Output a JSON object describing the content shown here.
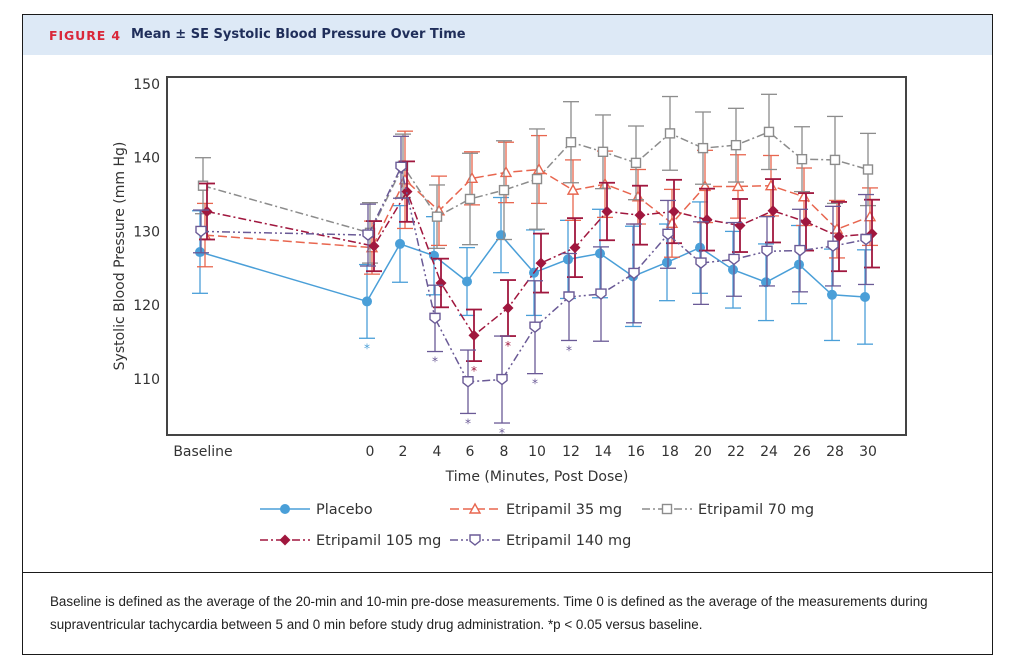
{
  "figure": {
    "label": "FIGURE 4",
    "title": "Mean ± SE Systolic Blood Pressure Over Time",
    "caption": "Baseline is defined as the average of the 20-min and 10-min pre-dose measurements. Time 0 is defined as the average of the measurements during supraventricular tachycardia between 5 and 0 min before study drug administration. *p < 0.05 versus baseline."
  },
  "chart_data": {
    "type": "line",
    "title": "Mean ± SE Systolic Blood Pressure Over Time",
    "xlabel": "Time (Minutes, Post Dose)",
    "ylabel": "Systolic Blood Pressure (mm Hg)",
    "ylim": [
      105.2,
      151
    ],
    "yticks": [
      110,
      120,
      130,
      140,
      150
    ],
    "x": [
      "Baseline",
      "0",
      "2",
      "4",
      "6",
      "8",
      "10",
      "12",
      "14",
      "16",
      "18",
      "20",
      "22",
      "24",
      "26",
      "28",
      "30"
    ],
    "grid": false,
    "legend_position": "bottom",
    "significance_marker": "*",
    "series": [
      {
        "name": "Placebo",
        "color": "#4a9fd8",
        "marker": "circle",
        "dash": "solid",
        "values": [
          127.2,
          120.5,
          128.3,
          126.7,
          123.2,
          129.5,
          124.4,
          126.2,
          127.0,
          123.9,
          125.8,
          127.8,
          124.8,
          123.1,
          125.5,
          121.4,
          121.1
        ],
        "se": [
          5.6,
          5.0,
          5.2,
          5.3,
          4.6,
          5.1,
          5.8,
          5.3,
          6.0,
          6.8,
          5.2,
          6.2,
          5.2,
          5.2,
          5.3,
          6.2,
          6.4
        ],
        "significant": [
          "",
          "*",
          "",
          "",
          "",
          "",
          "",
          "",
          "",
          "",
          "",
          "",
          "",
          "",
          "",
          "",
          ""
        ]
      },
      {
        "name": "Etripamil 35 mg",
        "color": "#e8664f",
        "marker": "triangle",
        "dash": "long-dash",
        "values": [
          129.5,
          127.8,
          137.0,
          132.8,
          137.2,
          138.0,
          138.4,
          135.6,
          136.4,
          134.7,
          131.1,
          136.1,
          136.1,
          136.2,
          134.7,
          130.3,
          132.0
        ],
        "se": [
          4.3,
          3.6,
          6.6,
          4.7,
          3.6,
          4.1,
          4.6,
          4.1,
          4.5,
          3.7,
          4.6,
          4.9,
          4.3,
          4.1,
          3.9,
          3.9,
          3.9
        ],
        "significant": [
          "",
          "",
          "",
          "",
          "",
          "",
          "",
          "",
          "",
          "",
          "",
          "",
          "",
          "",
          "",
          "",
          ""
        ]
      },
      {
        "name": "Etripamil 70 mg",
        "color": "#8c8c8c",
        "marker": "square",
        "dash": "dash-dot",
        "values": [
          136.2,
          129.8,
          138.9,
          132.0,
          134.4,
          135.6,
          137.1,
          142.1,
          140.8,
          139.3,
          143.3,
          141.3,
          141.7,
          143.5,
          139.8,
          139.7,
          138.4
        ],
        "se": [
          3.8,
          4.1,
          4.3,
          4.3,
          6.2,
          6.7,
          6.8,
          5.5,
          5.0,
          5.0,
          5.0,
          4.9,
          5.0,
          5.1,
          4.4,
          5.9,
          4.9
        ],
        "significant": [
          "",
          "",
          "",
          "",
          "",
          "",
          "",
          "",
          "",
          "",
          "",
          "",
          "",
          "",
          "",
          "",
          ""
        ]
      },
      {
        "name": "Etripamil 105 mg",
        "color": "#a0173e",
        "marker": "diamond",
        "dash": "dash-dot",
        "values": [
          132.7,
          128.0,
          135.4,
          123.0,
          115.9,
          119.6,
          125.7,
          127.8,
          132.7,
          132.2,
          132.7,
          131.6,
          130.8,
          132.8,
          131.3,
          129.3,
          129.7
        ],
        "se": [
          3.8,
          3.4,
          4.1,
          3.3,
          3.5,
          3.8,
          4.0,
          4.0,
          3.9,
          4.0,
          4.3,
          4.2,
          3.6,
          4.3,
          3.9,
          4.7,
          4.6
        ],
        "significant": [
          "",
          "",
          "",
          "",
          "*",
          "*",
          "",
          "",
          "",
          "",
          "",
          "",
          "",
          "",
          "",
          "",
          ""
        ]
      },
      {
        "name": "Etripamil 140 mg",
        "color": "#6a5a96",
        "marker": "shield",
        "dash": "dash-dot-dot",
        "values": [
          130.0,
          129.5,
          138.7,
          118.2,
          109.6,
          109.9,
          117.0,
          121.1,
          121.5,
          124.3,
          129.6,
          125.7,
          126.2,
          127.3,
          127.4,
          128.0,
          128.9
        ],
        "se": [
          2.9,
          4.2,
          4.2,
          4.5,
          4.3,
          5.9,
          6.3,
          5.9,
          6.4,
          6.7,
          4.6,
          5.6,
          5.0,
          4.7,
          5.6,
          5.4,
          6.1
        ],
        "significant": [
          "",
          "",
          "",
          "*",
          "*",
          "*",
          "*",
          "*",
          "",
          "",
          "",
          "",
          "",
          "",
          "",
          "",
          ""
        ]
      }
    ]
  },
  "legend": {
    "items": [
      "Placebo",
      "Etripamil 35 mg",
      "Etripamil 70 mg",
      "Etripamil 105 mg",
      "Etripamil 140 mg"
    ]
  }
}
